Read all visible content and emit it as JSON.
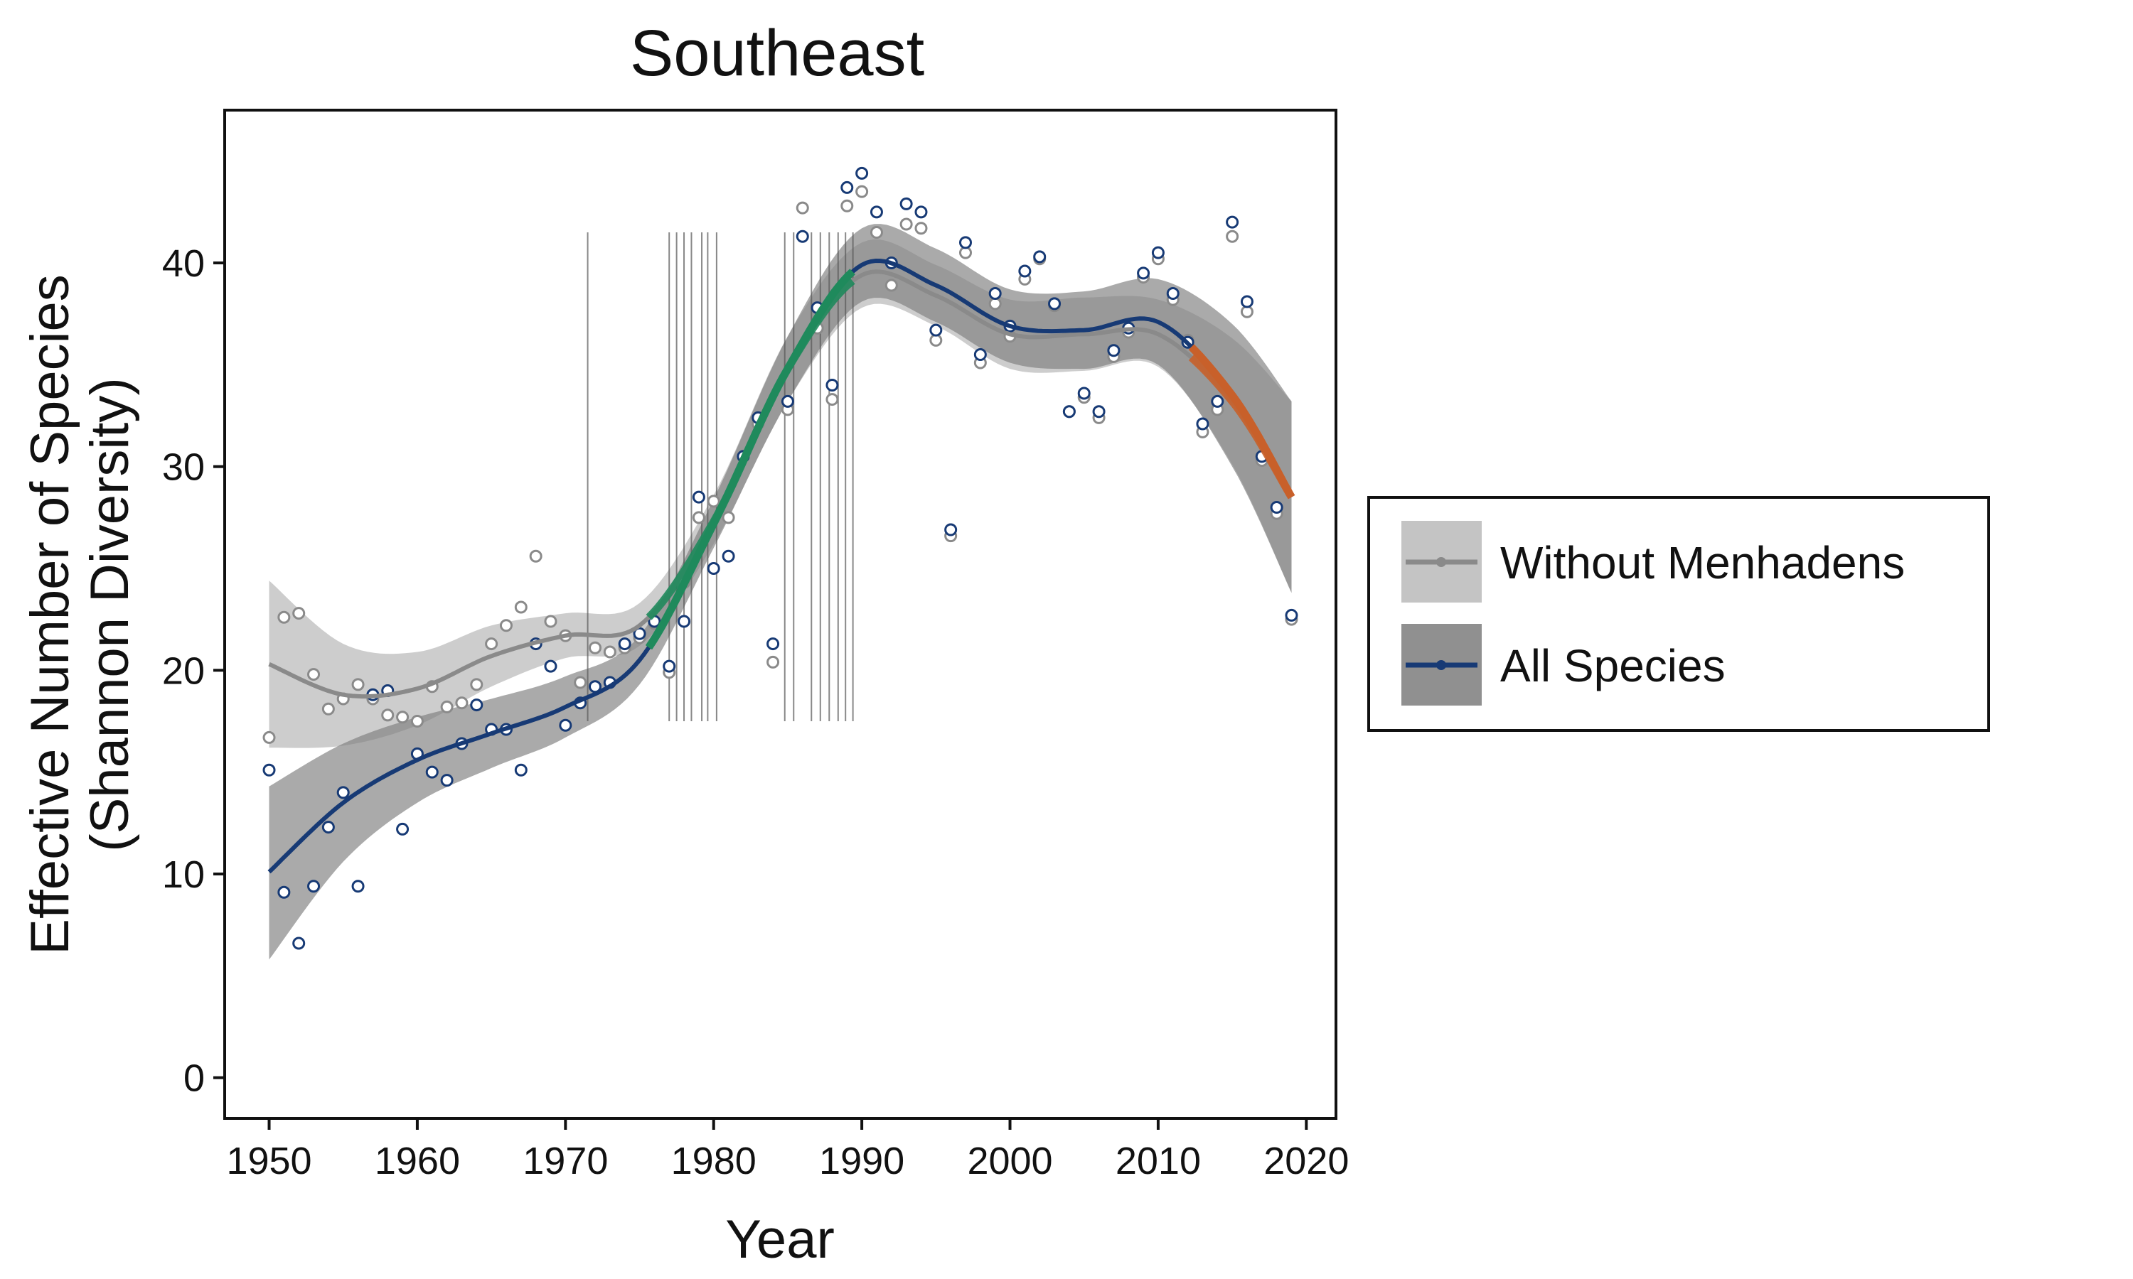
{
  "chart_data": {
    "type": "scatter",
    "title": "Southeast",
    "xlabel": "Year",
    "ylabel_line1": "Effective Number of Species",
    "ylabel_line2": "(Shannon Diversity)",
    "xlim": [
      1947,
      2022
    ],
    "ylim": [
      -2,
      47.5
    ],
    "xticks": [
      1950,
      1960,
      1970,
      1980,
      1990,
      2000,
      2010,
      2020
    ],
    "yticks": [
      0,
      10,
      20,
      30,
      40
    ],
    "grid": false,
    "legend_position": "right",
    "colors": {
      "all_species": "#173a75",
      "without_menhadens": "#8a8a8a",
      "band_all": "#7d7d7d",
      "band_without": "#c4c4c4",
      "increase": "#1f8a5c",
      "decrease": "#c8602a"
    },
    "series": [
      {
        "name": "Without Menhadens",
        "key": "without",
        "points_x": [
          1950,
          1951,
          1952,
          1953,
          1954,
          1955,
          1956,
          1957,
          1958,
          1959,
          1960,
          1961,
          1962,
          1963,
          1964,
          1965,
          1966,
          1967,
          1968,
          1969,
          1970,
          1971,
          1972,
          1973,
          1974,
          1975,
          1976,
          1977,
          1978,
          1979,
          1980,
          1981,
          1982,
          1983,
          1984,
          1985,
          1986,
          1987,
          1988,
          1989,
          1990,
          1991,
          1992,
          1993,
          1994,
          1995,
          1996,
          1997,
          1998,
          1999,
          2000,
          2001,
          2002,
          2003,
          2004,
          2005,
          2006,
          2007,
          2008,
          2009,
          2010,
          2011,
          2012,
          2013,
          2014,
          2015,
          2016,
          2017,
          2018,
          2019
        ],
        "points_y": [
          16.7,
          22.6,
          22.8,
          19.8,
          18.1,
          18.6,
          19.3,
          18.6,
          17.8,
          17.7,
          17.5,
          19.2,
          18.2,
          18.4,
          19.3,
          21.3,
          22.2,
          23.1,
          25.6,
          22.4,
          21.7,
          19.4,
          21.1,
          20.9,
          21.1,
          21.6,
          22.3,
          19.9,
          24.3,
          27.5,
          28.3,
          27.5,
          30.5,
          32.1,
          20.4,
          32.8,
          42.7,
          36.8,
          33.3,
          42.8,
          43.5,
          41.5,
          38.9,
          41.9,
          41.7,
          36.2,
          26.6,
          40.5,
          35.1,
          38,
          36.4,
          39.2,
          40.2,
          37.9,
          32.7,
          33.4,
          32.4,
          35.4,
          36.6,
          39.3,
          40.2,
          38.2,
          36.2,
          31.7,
          32.8,
          41.3,
          37.6,
          30.3,
          27.7,
          22.5
        ],
        "fit_x": [
          1950,
          1955,
          1960,
          1965,
          1970,
          1975,
          1980,
          1985,
          1990,
          1995,
          2000,
          2005,
          2010,
          2015,
          2019
        ],
        "fit_y": [
          20.3,
          18.8,
          19.1,
          20.7,
          21.7,
          22.2,
          27.3,
          34.8,
          39.4,
          38.4,
          36.5,
          36.5,
          36.5,
          33.2,
          28.5
        ],
        "band_lower": [
          16.2,
          16.3,
          17.3,
          19.2,
          20.6,
          21.2,
          26.2,
          33.2,
          37.8,
          36.9,
          34.8,
          34.7,
          34.9,
          30.1,
          23.8
        ],
        "band_upper": [
          24.4,
          21.3,
          20.9,
          22.2,
          22.8,
          23.3,
          28.6,
          36.4,
          41.0,
          39.9,
          38.2,
          38.3,
          38.2,
          36.3,
          33.2
        ]
      },
      {
        "name": "All Species",
        "key": "all",
        "points_x": [
          1950,
          1951,
          1952,
          1953,
          1954,
          1955,
          1956,
          1957,
          1958,
          1959,
          1960,
          1961,
          1962,
          1963,
          1964,
          1965,
          1966,
          1967,
          1968,
          1969,
          1970,
          1971,
          1972,
          1973,
          1974,
          1975,
          1976,
          1977,
          1978,
          1979,
          1980,
          1981,
          1982,
          1983,
          1984,
          1985,
          1986,
          1987,
          1988,
          1989,
          1990,
          1991,
          1992,
          1993,
          1994,
          1995,
          1996,
          1997,
          1998,
          1999,
          2000,
          2001,
          2002,
          2003,
          2004,
          2005,
          2006,
          2007,
          2008,
          2009,
          2010,
          2011,
          2012,
          2013,
          2014,
          2015,
          2016,
          2017,
          2018,
          2019
        ],
        "points_y": [
          15.1,
          9.1,
          6.6,
          9.4,
          12.3,
          14,
          9.4,
          18.8,
          19,
          12.2,
          15.9,
          15,
          14.6,
          16.4,
          18.3,
          17.1,
          17.1,
          15.1,
          21.3,
          20.2,
          17.3,
          18.4,
          19.2,
          19.4,
          21.3,
          21.8,
          22.4,
          20.2,
          22.4,
          28.5,
          25,
          25.6,
          30.5,
          32.4,
          21.3,
          33.2,
          41.3,
          37.8,
          34,
          43.7,
          44.4,
          42.5,
          40,
          42.9,
          42.5,
          36.7,
          26.9,
          41,
          35.5,
          38.5,
          36.9,
          39.6,
          40.3,
          38,
          32.7,
          33.6,
          32.7,
          35.7,
          36.8,
          39.5,
          40.5,
          38.5,
          36.1,
          32.1,
          33.2,
          42,
          38.1,
          30.5,
          28,
          22.7
        ],
        "fit_x": [
          1950,
          1955,
          1960,
          1965,
          1970,
          1975,
          1980,
          1985,
          1990,
          1995,
          2000,
          2005,
          2010,
          2015,
          2019
        ],
        "fit_y": [
          10.1,
          13.5,
          15.6,
          16.9,
          18.2,
          20.5,
          27.2,
          34.8,
          39.9,
          38.9,
          36.9,
          36.7,
          37.1,
          33.5,
          28.5
        ],
        "band_lower": [
          5.8,
          10.6,
          13.5,
          15.2,
          16.7,
          19.3,
          26.0,
          33.2,
          38.1,
          37.1,
          35.1,
          34.8,
          35.0,
          30.0,
          23.8
        ],
        "band_upper": [
          14.3,
          16.4,
          17.7,
          18.6,
          19.7,
          21.7,
          28.4,
          36.4,
          41.7,
          40.7,
          38.7,
          38.6,
          39.2,
          37.0,
          33.2
        ]
      }
    ],
    "significant_increase_range": [
      1975.5,
      1989.5
    ],
    "significant_decrease_range": [
      2012,
      2019
    ],
    "highlight_year_lines": [
      1971.5,
      1977,
      1977.5,
      1978,
      1978.5,
      1979.2,
      1979.6,
      1980.2,
      1984.8,
      1985.4,
      1986.6,
      1987.2,
      1987.8,
      1988.4,
      1988.9,
      1989.4
    ]
  }
}
